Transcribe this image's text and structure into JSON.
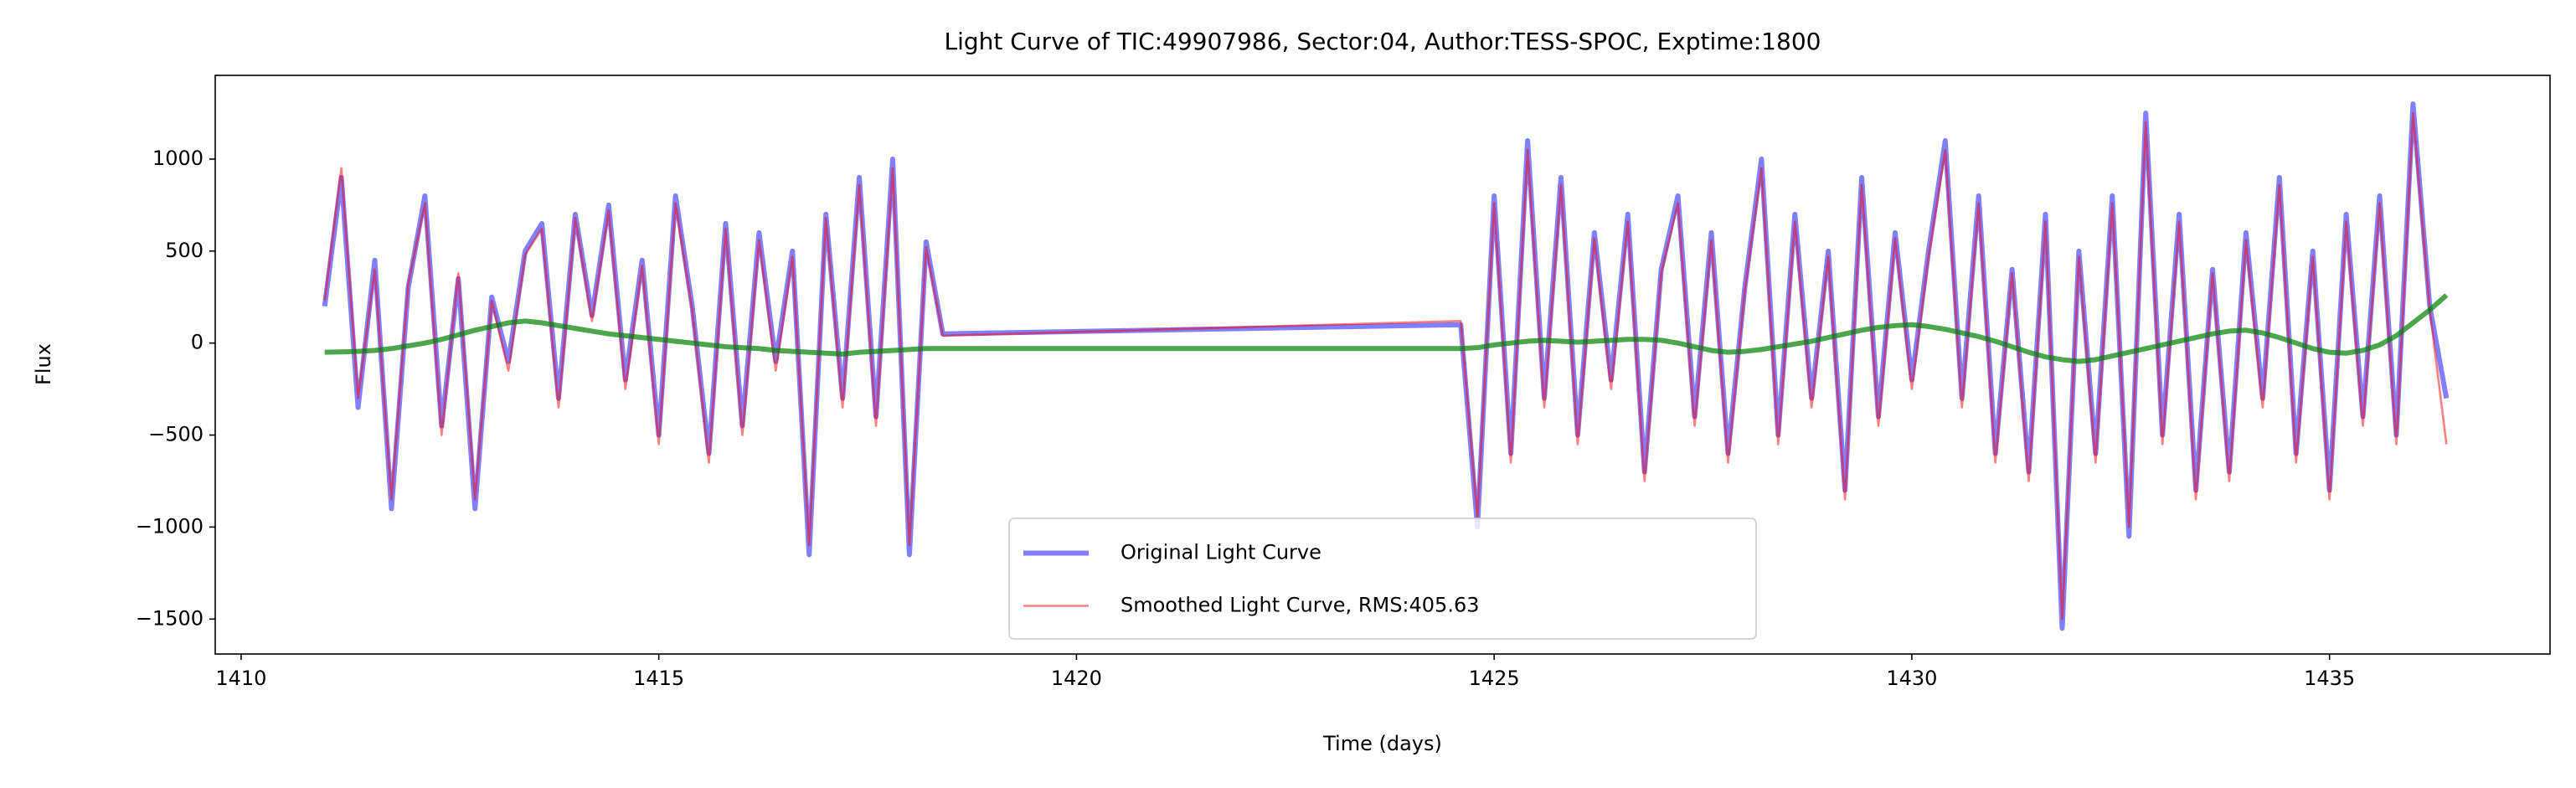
{
  "chart_data": {
    "type": "line",
    "title": "Light Curve of TIC:49907986, Sector:04, Author:TESS-SPOC, Exptime:1800",
    "xlabel": "Time (days)",
    "ylabel": "Flux",
    "xlim": [
      1409.69,
      1437.64
    ],
    "ylim": [
      -1690,
      1455
    ],
    "xticks": [
      1410,
      1415,
      1420,
      1425,
      1430,
      1435
    ],
    "yticks": [
      {
        "value": -1500,
        "label": "−1500"
      },
      {
        "value": -1000,
        "label": "−1000"
      },
      {
        "value": -500,
        "label": "−500"
      },
      0,
      500,
      1000
    ],
    "grid": false,
    "legend": "lower center",
    "x": [
      1411,
      1411.2,
      1411.4,
      1411.6,
      1411.8,
      1412,
      1412.2,
      1412.4,
      1412.6,
      1412.8,
      1413,
      1413.2,
      1413.4,
      1413.6,
      1413.8,
      1414,
      1414.2,
      1414.4,
      1414.6,
      1414.8,
      1415,
      1415.2,
      1415.4,
      1415.6,
      1415.8,
      1416,
      1416.2,
      1416.4,
      1416.6,
      1416.8,
      1417,
      1417.2,
      1417.4,
      1417.6,
      1417.8,
      1418,
      1418.2,
      1418.4,
      1424.6,
      1424.8,
      1425,
      1425.2,
      1425.4,
      1425.6,
      1425.8,
      1426,
      1426.2,
      1426.4,
      1426.6,
      1426.8,
      1427,
      1427.2,
      1427.4,
      1427.6,
      1427.8,
      1428,
      1428.2,
      1428.4,
      1428.6,
      1428.8,
      1429,
      1429.2,
      1429.4,
      1429.6,
      1429.8,
      1430,
      1430.2,
      1430.4,
      1430.6,
      1430.8,
      1431,
      1431.2,
      1431.4,
      1431.6,
      1431.8,
      1432,
      1432.2,
      1432.4,
      1432.6,
      1432.8,
      1433,
      1433.2,
      1433.4,
      1433.6,
      1433.8,
      1434,
      1434.2,
      1434.4,
      1434.6,
      1434.8,
      1435,
      1435.2,
      1435.4,
      1435.6,
      1435.8,
      1436,
      1436.2,
      1436.4
    ],
    "series": [
      {
        "name": "Original Light Curve",
        "color": "#0000ff",
        "alpha": 0.5,
        "values": [
          200,
          900,
          -350,
          450,
          -900,
          300,
          800,
          -450,
          350,
          -900,
          250,
          -100,
          500,
          650,
          -300,
          700,
          150,
          750,
          -200,
          450,
          -500,
          800,
          200,
          -600,
          650,
          -450,
          600,
          -100,
          500,
          -1150,
          700,
          -300,
          900,
          -400,
          1000,
          -1150,
          550,
          50,
          100,
          -1000,
          800,
          -600,
          1100,
          -300,
          900,
          -500,
          600,
          -200,
          700,
          -700,
          400,
          800,
          -400,
          600,
          -600,
          300,
          1000,
          -500,
          700,
          -300,
          500,
          -800,
          900,
          -400,
          600,
          -200,
          500,
          1100,
          -300,
          800,
          -600,
          400,
          -700,
          700,
          -1550,
          500,
          -600,
          800,
          -1050,
          1250,
          -500,
          700,
          -800,
          400,
          -700,
          600,
          -300,
          900,
          -600,
          500,
          -800,
          700,
          -400,
          800,
          -500,
          1300,
          200,
          -300
        ]
      },
      {
        "name": "Smoothed Light Curve, RMS:405.63",
        "color": "#ff0000",
        "alpha": 0.5,
        "values": [
          230,
          950,
          -300,
          400,
          -850,
          320,
          760,
          -500,
          380,
          -850,
          230,
          -150,
          480,
          620,
          -350,
          680,
          120,
          720,
          -250,
          420,
          -550,
          760,
          180,
          -650,
          620,
          -500,
          560,
          -150,
          470,
          -1100,
          680,
          -350,
          860,
          -450,
          950,
          -1100,
          520,
          40,
          120,
          -950,
          760,
          -650,
          1050,
          -350,
          860,
          -550,
          570,
          -250,
          660,
          -750,
          380,
          760,
          -450,
          560,
          -650,
          280,
          950,
          -550,
          660,
          -350,
          470,
          -850,
          860,
          -450,
          570,
          -250,
          470,
          1050,
          -350,
          760,
          -650,
          380,
          -750,
          660,
          -1500,
          470,
          -650,
          760,
          -1000,
          1200,
          -550,
          660,
          -850,
          380,
          -750,
          560,
          -350,
          860,
          -650,
          470,
          -850,
          660,
          -450,
          760,
          -550,
          1250,
          180,
          -550
        ]
      },
      {
        "color": "#008000",
        "alpha": 0.7,
        "values": [
          -50,
          -48,
          -45,
          -40,
          -30,
          -15,
          0,
          20,
          45,
          70,
          90,
          110,
          120,
          110,
          95,
          80,
          65,
          50,
          40,
          30,
          20,
          10,
          0,
          -10,
          -20,
          -25,
          -30,
          -40,
          -45,
          -50,
          -55,
          -60,
          -50,
          -45,
          -40,
          -35,
          -30,
          -30,
          -30,
          -25,
          -10,
          0,
          10,
          15,
          10,
          5,
          10,
          15,
          20,
          20,
          15,
          0,
          -20,
          -40,
          -50,
          -45,
          -35,
          -20,
          -5,
          10,
          30,
          50,
          70,
          85,
          95,
          100,
          90,
          75,
          55,
          35,
          10,
          -20,
          -50,
          -75,
          -90,
          -100,
          -90,
          -70,
          -50,
          -30,
          -10,
          10,
          30,
          50,
          65,
          70,
          55,
          30,
          0,
          -30,
          -50,
          -55,
          -40,
          -10,
          40,
          110,
          180,
          260
        ]
      }
    ]
  }
}
